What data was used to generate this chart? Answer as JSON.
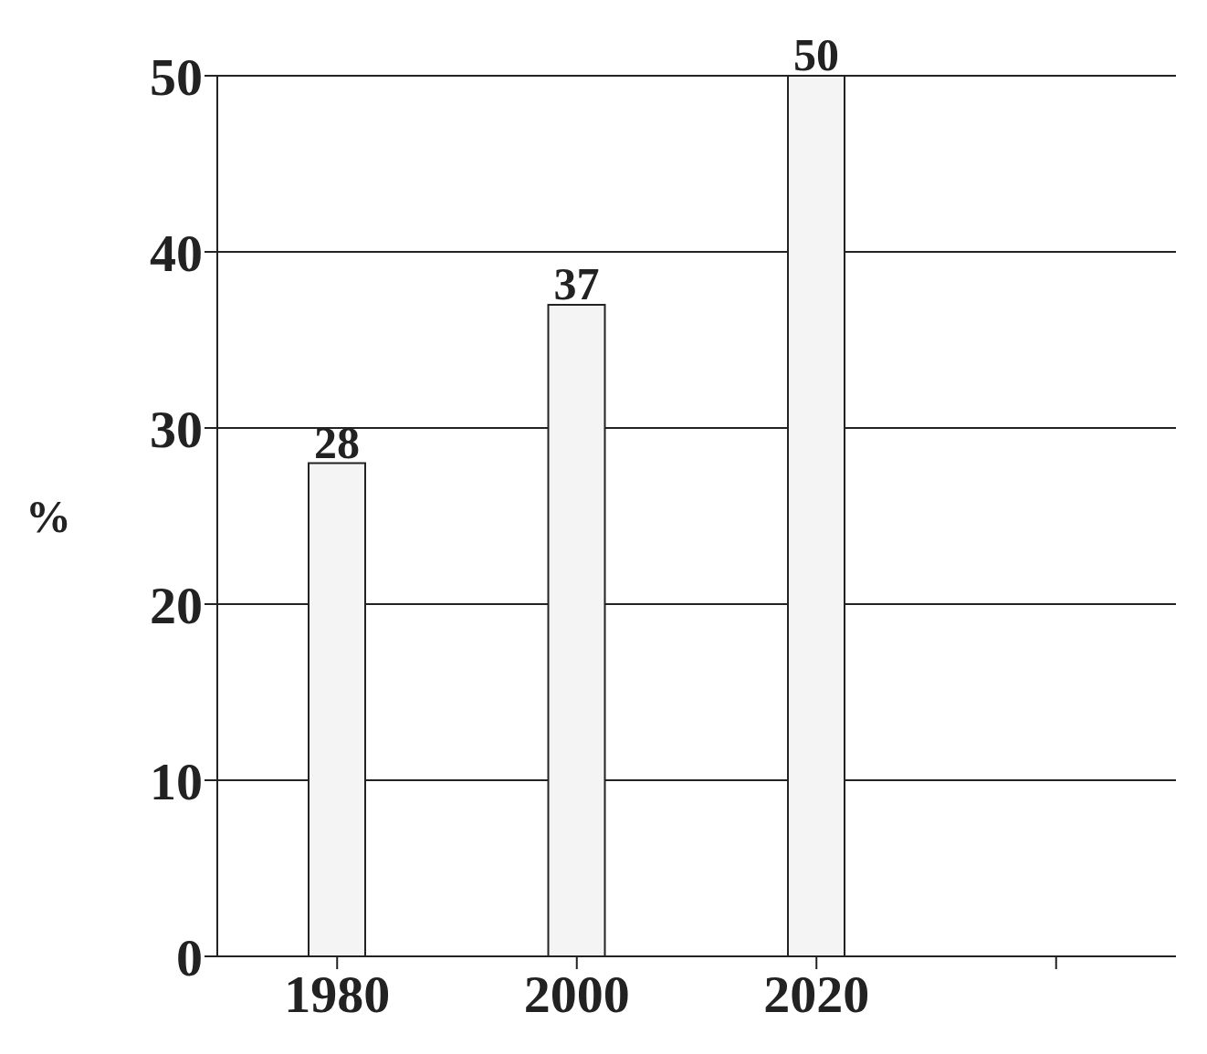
{
  "chart_data": {
    "type": "bar",
    "categories": [
      "1980",
      "2000",
      "2020",
      null
    ],
    "values": [
      28,
      37,
      50,
      null
    ],
    "color": "#f4f4f4",
    "ylabel": "%",
    "ylim": [
      0,
      50
    ],
    "yticks": [
      0,
      10,
      20,
      30,
      40,
      50
    ],
    "grid": "y",
    "data_labels": true
  }
}
